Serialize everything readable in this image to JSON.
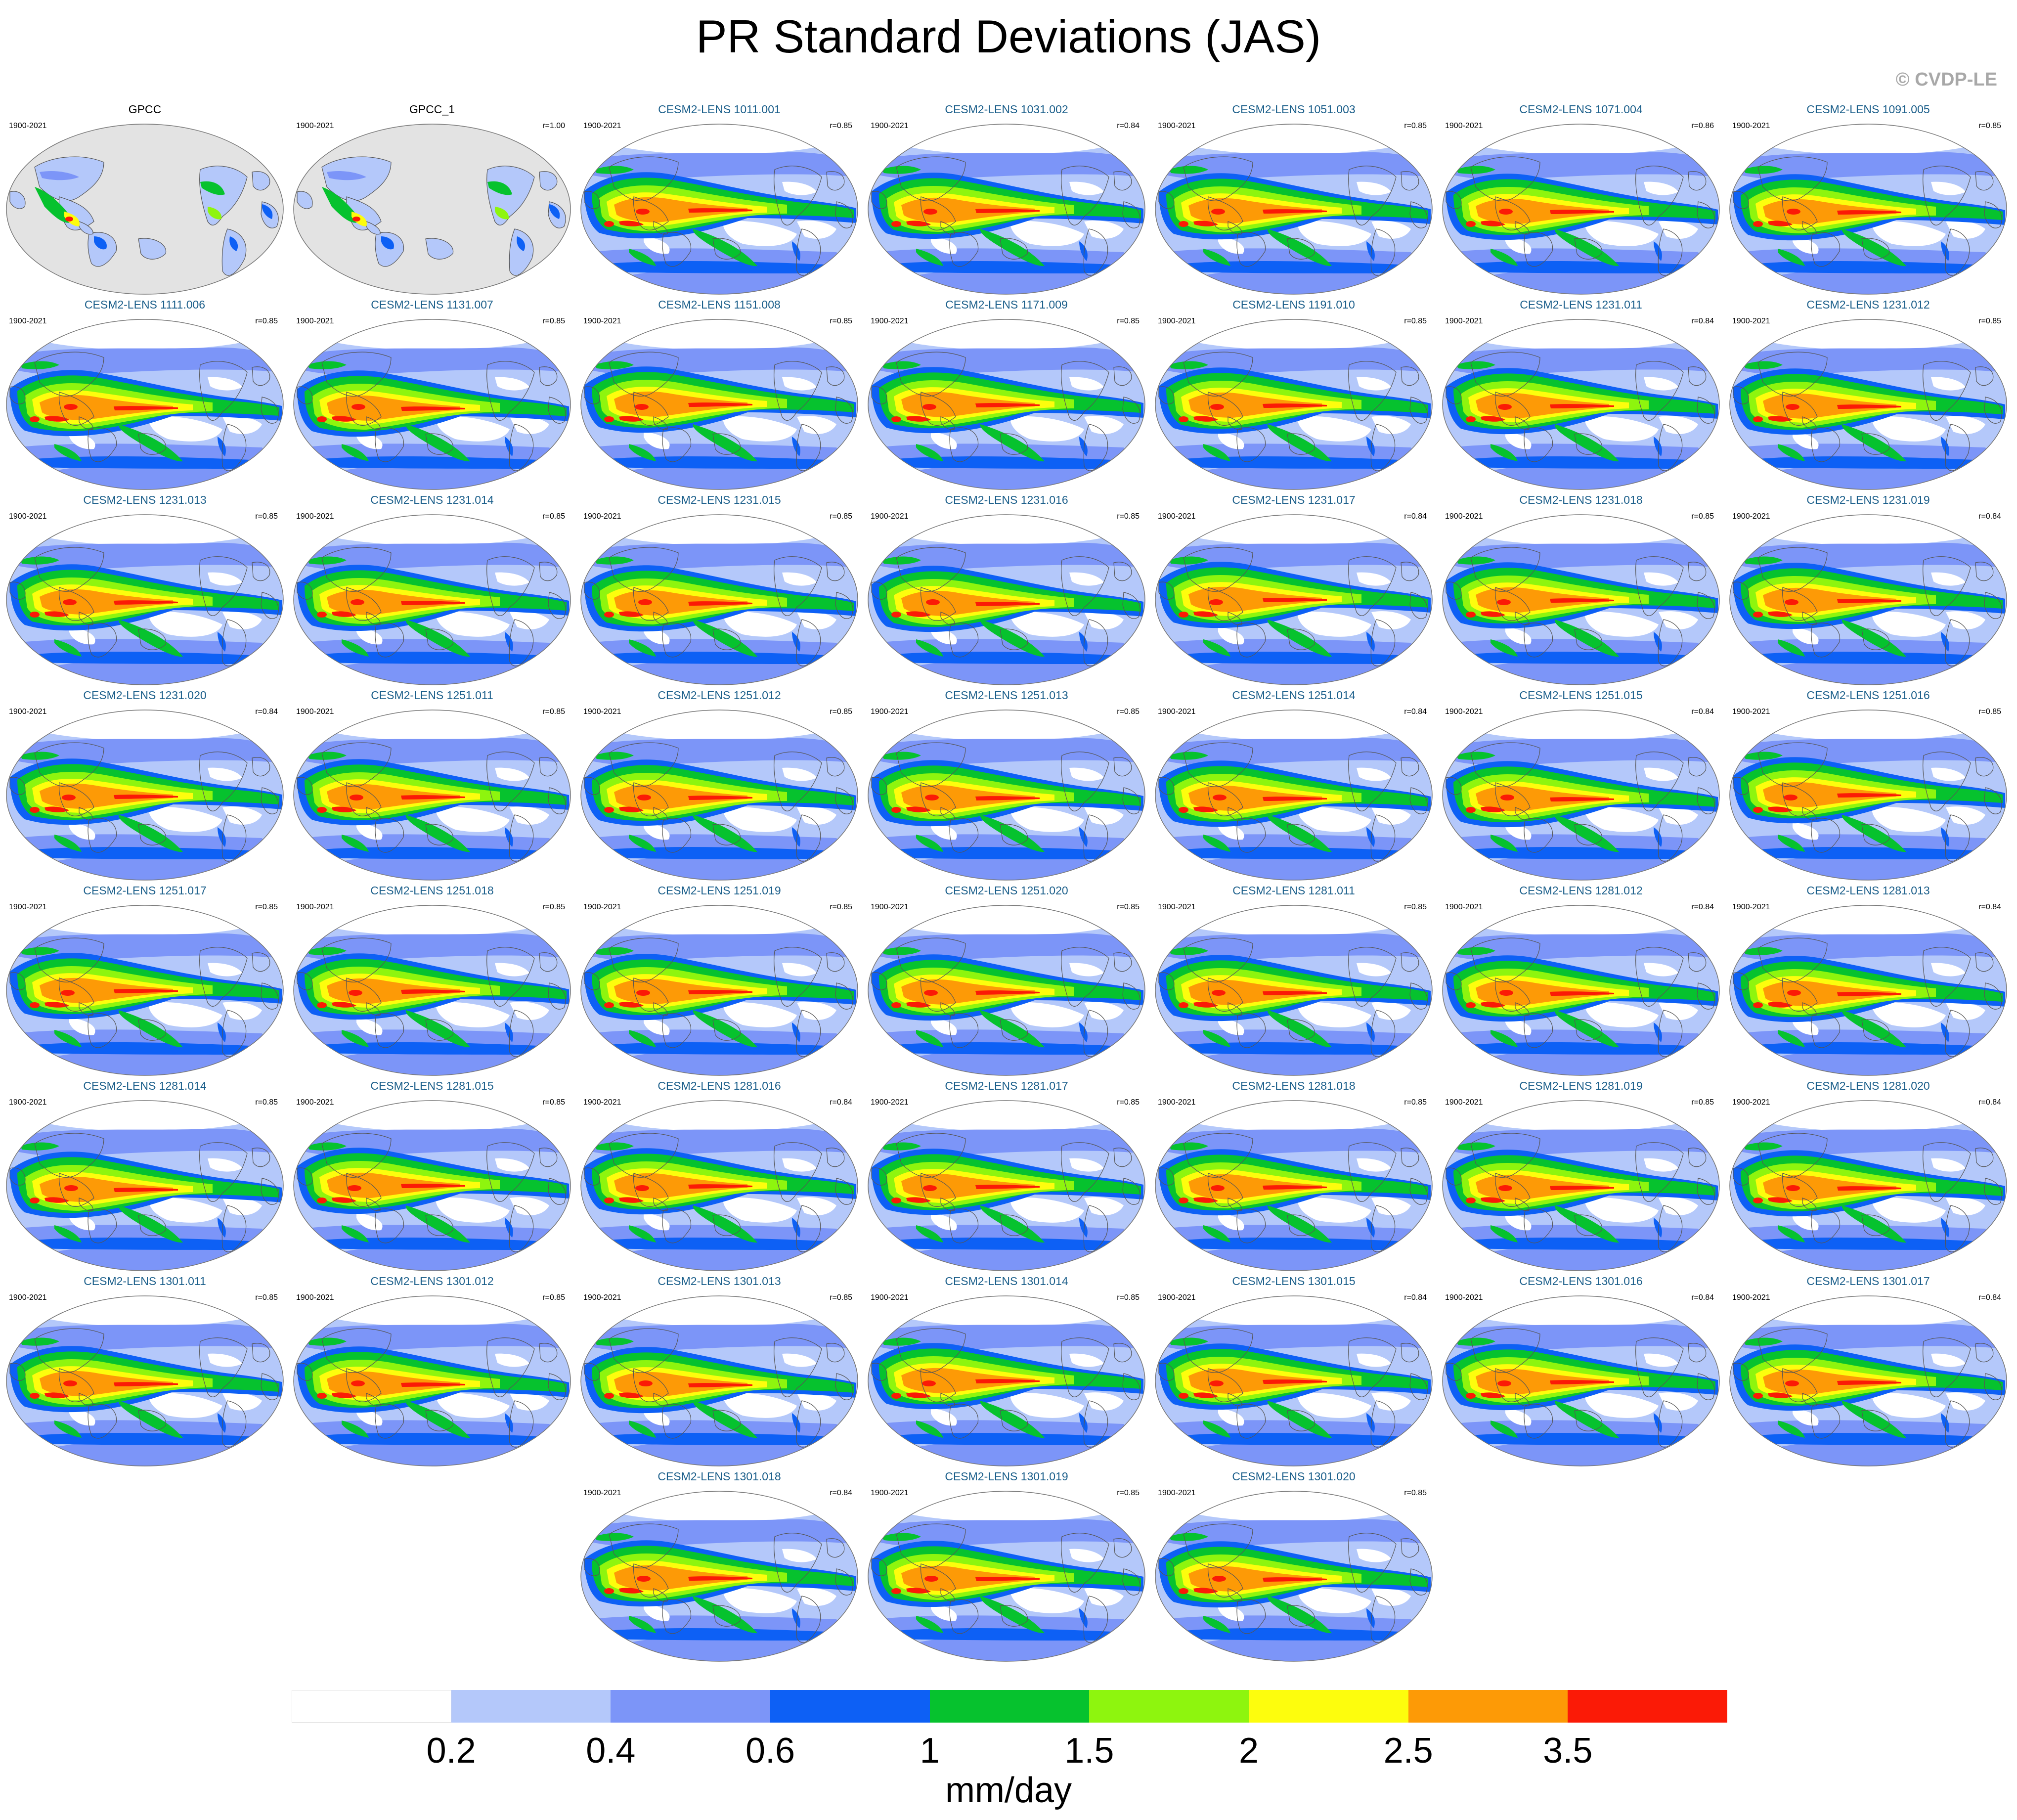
{
  "title": "PR Standard Deviations (JAS)",
  "copyright": "© CVDP-LE",
  "colorbar": {
    "colors": [
      "#ffffff",
      "#b4c8fa",
      "#7c95f8",
      "#0d60f5",
      "#06c22e",
      "#8ef50e",
      "#fdfd0d",
      "#fd9a06",
      "#fb1a06"
    ],
    "labels": [
      "0.2",
      "0.4",
      "0.6",
      "1",
      "1.5",
      "2",
      "2.5",
      "3.5"
    ],
    "units": "mm/day"
  },
  "panels": [
    {
      "title": "GPCC",
      "years": "1900-2021",
      "r": "",
      "obs": true
    },
    {
      "title": "GPCC_1",
      "years": "1900-2021",
      "r": "r=1.00",
      "obs": true
    },
    {
      "title": "CESM2-LENS 1011.001",
      "years": "1900-2021",
      "r": "r=0.85"
    },
    {
      "title": "CESM2-LENS 1031.002",
      "years": "1900-2021",
      "r": "r=0.84"
    },
    {
      "title": "CESM2-LENS 1051.003",
      "years": "1900-2021",
      "r": "r=0.85"
    },
    {
      "title": "CESM2-LENS 1071.004",
      "years": "1900-2021",
      "r": "r=0.86"
    },
    {
      "title": "CESM2-LENS 1091.005",
      "years": "1900-2021",
      "r": "r=0.85"
    },
    {
      "title": "CESM2-LENS 1111.006",
      "years": "1900-2021",
      "r": "r=0.85"
    },
    {
      "title": "CESM2-LENS 1131.007",
      "years": "1900-2021",
      "r": "r=0.85"
    },
    {
      "title": "CESM2-LENS 1151.008",
      "years": "1900-2021",
      "r": "r=0.85"
    },
    {
      "title": "CESM2-LENS 1171.009",
      "years": "1900-2021",
      "r": "r=0.85"
    },
    {
      "title": "CESM2-LENS 1191.010",
      "years": "1900-2021",
      "r": "r=0.85"
    },
    {
      "title": "CESM2-LENS 1231.011",
      "years": "1900-2021",
      "r": "r=0.84"
    },
    {
      "title": "CESM2-LENS 1231.012",
      "years": "1900-2021",
      "r": "r=0.85"
    },
    {
      "title": "CESM2-LENS 1231.013",
      "years": "1900-2021",
      "r": "r=0.85"
    },
    {
      "title": "CESM2-LENS 1231.014",
      "years": "1900-2021",
      "r": "r=0.85"
    },
    {
      "title": "CESM2-LENS 1231.015",
      "years": "1900-2021",
      "r": "r=0.85"
    },
    {
      "title": "CESM2-LENS 1231.016",
      "years": "1900-2021",
      "r": "r=0.85"
    },
    {
      "title": "CESM2-LENS 1231.017",
      "years": "1900-2021",
      "r": "r=0.84"
    },
    {
      "title": "CESM2-LENS 1231.018",
      "years": "1900-2021",
      "r": "r=0.85"
    },
    {
      "title": "CESM2-LENS 1231.019",
      "years": "1900-2021",
      "r": "r=0.84"
    },
    {
      "title": "CESM2-LENS 1231.020",
      "years": "1900-2021",
      "r": "r=0.84"
    },
    {
      "title": "CESM2-LENS 1251.011",
      "years": "1900-2021",
      "r": "r=0.85"
    },
    {
      "title": "CESM2-LENS 1251.012",
      "years": "1900-2021",
      "r": "r=0.85"
    },
    {
      "title": "CESM2-LENS 1251.013",
      "years": "1900-2021",
      "r": "r=0.85"
    },
    {
      "title": "CESM2-LENS 1251.014",
      "years": "1900-2021",
      "r": "r=0.84"
    },
    {
      "title": "CESM2-LENS 1251.015",
      "years": "1900-2021",
      "r": "r=0.84"
    },
    {
      "title": "CESM2-LENS 1251.016",
      "years": "1900-2021",
      "r": "r=0.85"
    },
    {
      "title": "CESM2-LENS 1251.017",
      "years": "1900-2021",
      "r": "r=0.85"
    },
    {
      "title": "CESM2-LENS 1251.018",
      "years": "1900-2021",
      "r": "r=0.85"
    },
    {
      "title": "CESM2-LENS 1251.019",
      "years": "1900-2021",
      "r": "r=0.85"
    },
    {
      "title": "CESM2-LENS 1251.020",
      "years": "1900-2021",
      "r": "r=0.85"
    },
    {
      "title": "CESM2-LENS 1281.011",
      "years": "1900-2021",
      "r": "r=0.85"
    },
    {
      "title": "CESM2-LENS 1281.012",
      "years": "1900-2021",
      "r": "r=0.84"
    },
    {
      "title": "CESM2-LENS 1281.013",
      "years": "1900-2021",
      "r": "r=0.84"
    },
    {
      "title": "CESM2-LENS 1281.014",
      "years": "1900-2021",
      "r": "r=0.85"
    },
    {
      "title": "CESM2-LENS 1281.015",
      "years": "1900-2021",
      "r": "r=0.85"
    },
    {
      "title": "CESM2-LENS 1281.016",
      "years": "1900-2021",
      "r": "r=0.84"
    },
    {
      "title": "CESM2-LENS 1281.017",
      "years": "1900-2021",
      "r": "r=0.85"
    },
    {
      "title": "CESM2-LENS 1281.018",
      "years": "1900-2021",
      "r": "r=0.85"
    },
    {
      "title": "CESM2-LENS 1281.019",
      "years": "1900-2021",
      "r": "r=0.85"
    },
    {
      "title": "CESM2-LENS 1281.020",
      "years": "1900-2021",
      "r": "r=0.84"
    },
    {
      "title": "CESM2-LENS 1301.011",
      "years": "1900-2021",
      "r": "r=0.85"
    },
    {
      "title": "CESM2-LENS 1301.012",
      "years": "1900-2021",
      "r": "r=0.85"
    },
    {
      "title": "CESM2-LENS 1301.013",
      "years": "1900-2021",
      "r": "r=0.85"
    },
    {
      "title": "CESM2-LENS 1301.014",
      "years": "1900-2021",
      "r": "r=0.85"
    },
    {
      "title": "CESM2-LENS 1301.015",
      "years": "1900-2021",
      "r": "r=0.84"
    },
    {
      "title": "CESM2-LENS 1301.016",
      "years": "1900-2021",
      "r": "r=0.84"
    },
    {
      "title": "CESM2-LENS 1301.017",
      "years": "1900-2021",
      "r": "r=0.84"
    },
    {
      "title": "CESM2-LENS 1301.018",
      "years": "1900-2021",
      "r": "r=0.84"
    },
    {
      "title": "CESM2-LENS 1301.019",
      "years": "1900-2021",
      "r": "r=0.85"
    },
    {
      "title": "CESM2-LENS 1301.020",
      "years": "1900-2021",
      "r": "r=0.85"
    }
  ]
}
